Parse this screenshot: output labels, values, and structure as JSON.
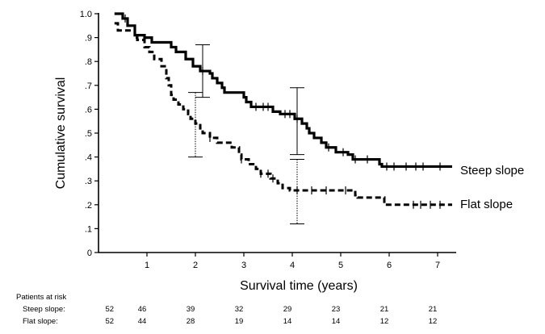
{
  "chart_data": {
    "type": "line",
    "subtype": "kaplan-meier",
    "xlabel": "Survival time (years)",
    "ylabel": "Cumulative survival",
    "xlim": [
      0,
      7.4
    ],
    "ylim": [
      0,
      1.0
    ],
    "x_ticks": [
      {
        "value": 1,
        "label": "1"
      },
      {
        "value": 2,
        "label": "2"
      },
      {
        "value": 3,
        "label": "3"
      },
      {
        "value": 4,
        "label": "4"
      },
      {
        "value": 5,
        "label": "5"
      },
      {
        "value": 6,
        "label": "6"
      },
      {
        "value": 7,
        "label": "7"
      }
    ],
    "y_ticks": [
      {
        "value": 0,
        "label": "0"
      },
      {
        "value": 0.1,
        "label": ".1"
      },
      {
        "value": 0.2,
        "label": ".2"
      },
      {
        "value": 0.3,
        "label": ".3"
      },
      {
        "value": 0.4,
        "label": ".4"
      },
      {
        "value": 0.5,
        "label": ".5"
      },
      {
        "value": 0.6,
        "label": ".6"
      },
      {
        "value": 0.7,
        "label": ".7"
      },
      {
        "value": 0.8,
        "label": ".8"
      },
      {
        "value": 0.9,
        "label": ".9"
      },
      {
        "value": 1.0,
        "label": "1.0"
      }
    ],
    "series": [
      {
        "name": "Steep slope",
        "line_style": "solid",
        "steps": [
          [
            0.33,
            1.0
          ],
          [
            0.5,
            0.98
          ],
          [
            0.6,
            0.95
          ],
          [
            0.75,
            0.91
          ],
          [
            0.95,
            0.9
          ],
          [
            1.1,
            0.88
          ],
          [
            1.5,
            0.86
          ],
          [
            1.6,
            0.84
          ],
          [
            1.8,
            0.81
          ],
          [
            1.95,
            0.78
          ],
          [
            2.1,
            0.76
          ],
          [
            2.3,
            0.75
          ],
          [
            2.35,
            0.73
          ],
          [
            2.45,
            0.71
          ],
          [
            2.55,
            0.69
          ],
          [
            2.6,
            0.67
          ],
          [
            3.0,
            0.65
          ],
          [
            3.05,
            0.63
          ],
          [
            3.15,
            0.61
          ],
          [
            3.6,
            0.59
          ],
          [
            3.75,
            0.58
          ],
          [
            4.05,
            0.56
          ],
          [
            4.2,
            0.54
          ],
          [
            4.3,
            0.52
          ],
          [
            4.35,
            0.5
          ],
          [
            4.45,
            0.48
          ],
          [
            4.6,
            0.46
          ],
          [
            4.7,
            0.44
          ],
          [
            4.9,
            0.42
          ],
          [
            5.15,
            0.41
          ],
          [
            5.25,
            0.39
          ],
          [
            5.8,
            0.37
          ],
          [
            5.85,
            0.36
          ]
        ],
        "end_x": 7.3,
        "censor_marks": [
          [
            0.55,
            0.98
          ],
          [
            2.15,
            0.76
          ],
          [
            3.25,
            0.61
          ],
          [
            3.4,
            0.61
          ],
          [
            3.5,
            0.61
          ],
          [
            3.85,
            0.58
          ],
          [
            3.95,
            0.58
          ],
          [
            4.1,
            0.56
          ],
          [
            4.75,
            0.44
          ],
          [
            5.05,
            0.42
          ],
          [
            5.3,
            0.39
          ],
          [
            5.55,
            0.39
          ],
          [
            5.95,
            0.36
          ],
          [
            6.1,
            0.36
          ],
          [
            6.35,
            0.36
          ],
          [
            6.55,
            0.36
          ],
          [
            6.7,
            0.36
          ],
          [
            7.05,
            0.36
          ]
        ],
        "error_bars": [
          {
            "x": 2.15,
            "y": 0.76,
            "lower": 0.65,
            "upper": 0.87
          },
          {
            "x": 4.1,
            "y": 0.56,
            "lower": 0.41,
            "upper": 0.69
          }
        ],
        "label": "Steep slope"
      },
      {
        "name": "Flat slope",
        "line_style": "dashed",
        "steps": [
          [
            0.33,
            0.96
          ],
          [
            0.4,
            0.93
          ],
          [
            0.75,
            0.9
          ],
          [
            0.8,
            0.89
          ],
          [
            0.95,
            0.86
          ],
          [
            1.05,
            0.84
          ],
          [
            1.15,
            0.81
          ],
          [
            1.3,
            0.78
          ],
          [
            1.4,
            0.73
          ],
          [
            1.45,
            0.7
          ],
          [
            1.5,
            0.66
          ],
          [
            1.55,
            0.64
          ],
          [
            1.65,
            0.62
          ],
          [
            1.75,
            0.6
          ],
          [
            1.85,
            0.58
          ],
          [
            1.9,
            0.56
          ],
          [
            2.0,
            0.54
          ],
          [
            2.1,
            0.52
          ],
          [
            2.15,
            0.5
          ],
          [
            2.3,
            0.48
          ],
          [
            2.45,
            0.46
          ],
          [
            2.75,
            0.44
          ],
          [
            2.9,
            0.41
          ],
          [
            2.95,
            0.39
          ],
          [
            3.1,
            0.37
          ],
          [
            3.25,
            0.35
          ],
          [
            3.35,
            0.33
          ],
          [
            3.55,
            0.31
          ],
          [
            3.7,
            0.29
          ],
          [
            3.8,
            0.27
          ],
          [
            3.95,
            0.26
          ],
          [
            5.3,
            0.24
          ],
          [
            5.35,
            0.23
          ],
          [
            5.9,
            0.2
          ]
        ],
        "end_x": 7.3,
        "censor_marks": [
          [
            2.3,
            0.48
          ],
          [
            2.95,
            0.39
          ],
          [
            3.35,
            0.33
          ],
          [
            3.5,
            0.33
          ],
          [
            3.6,
            0.31
          ],
          [
            4.1,
            0.26
          ],
          [
            4.4,
            0.26
          ],
          [
            4.7,
            0.26
          ],
          [
            5.1,
            0.26
          ],
          [
            6.5,
            0.2
          ],
          [
            6.65,
            0.2
          ],
          [
            6.85,
            0.2
          ],
          [
            7.05,
            0.2
          ]
        ],
        "error_bars": [
          {
            "x": 2.0,
            "y": 0.54,
            "lower": 0.4,
            "upper": 0.67
          },
          {
            "x": 4.1,
            "y": 0.26,
            "lower": 0.12,
            "upper": 0.39
          }
        ],
        "label": "Flat slope"
      }
    ],
    "risk_table": {
      "title": "Patients at risk",
      "x_positions": [
        0.33,
        1.0,
        2.0,
        3.0,
        4.0,
        5.0,
        6.0,
        7.0
      ],
      "rows": [
        {
          "label": "Steep slope:",
          "values": [
            "52",
            "46",
            "39",
            "32",
            "29",
            "23",
            "21",
            "21"
          ]
        },
        {
          "label": "Flat slope:",
          "values": [
            "52",
            "44",
            "28",
            "19",
            "14",
            "14",
            "12",
            "12"
          ]
        }
      ]
    }
  }
}
